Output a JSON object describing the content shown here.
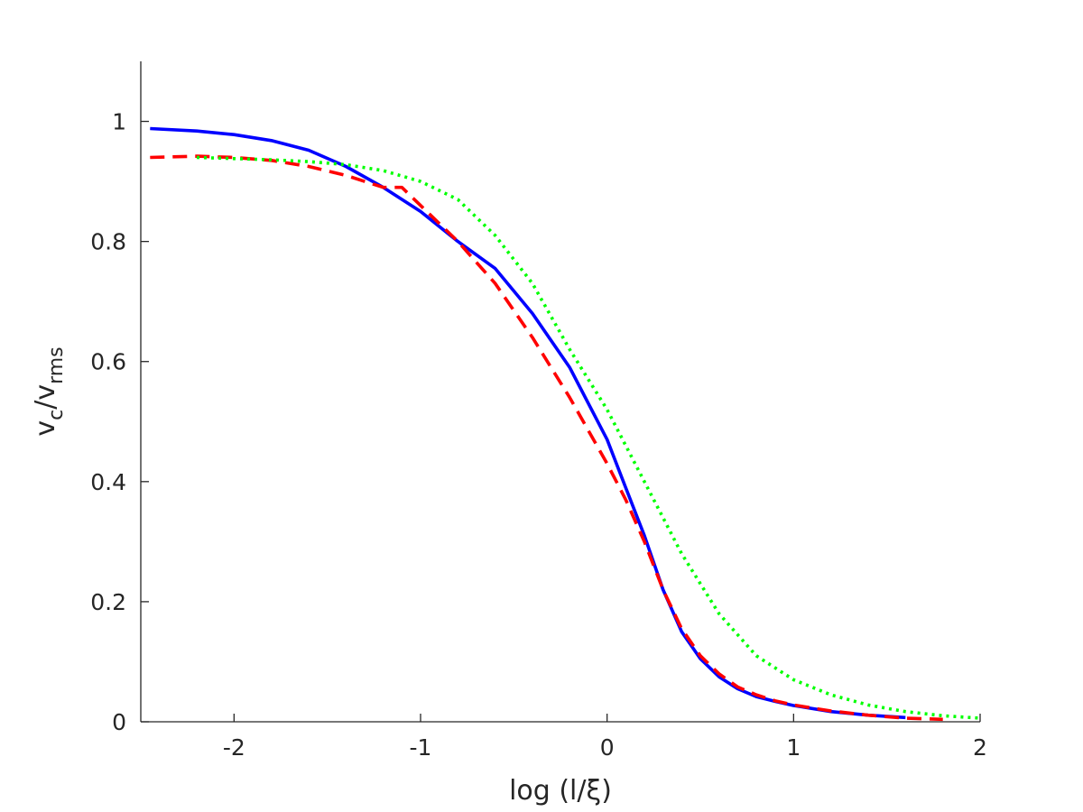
{
  "chart_data": {
    "type": "line",
    "xlabel": "log (l/ξ)",
    "ylabel": {
      "main": "v",
      "sub1": "c",
      "slash": "/v",
      "sub2": "rms"
    },
    "xlim": [
      -2.5,
      2
    ],
    "ylim": [
      0,
      1.1
    ],
    "x_ticks": [
      -2,
      -1,
      0,
      1,
      2
    ],
    "x_tick_labels": [
      "-2",
      "-1",
      "0",
      "1",
      "2"
    ],
    "y_ticks": [
      0,
      0.2,
      0.4,
      0.6,
      0.8,
      1
    ],
    "y_tick_labels": [
      "0",
      "0.2",
      "0.4",
      "0.6",
      "0.8",
      "1"
    ],
    "grid": false,
    "legend": "none",
    "series": [
      {
        "color": "#0000ff",
        "style": "solid",
        "x": [
          -2.45,
          -2.2,
          -2.0,
          -1.8,
          -1.6,
          -1.4,
          -1.2,
          -1.0,
          -0.8,
          -0.6,
          -0.4,
          -0.2,
          0.0,
          0.1,
          0.2,
          0.3,
          0.4,
          0.5,
          0.6,
          0.7,
          0.8,
          0.9,
          1.0,
          1.2,
          1.4,
          1.6
        ],
        "y": [
          0.988,
          0.984,
          0.978,
          0.968,
          0.952,
          0.925,
          0.89,
          0.85,
          0.8,
          0.755,
          0.68,
          0.59,
          0.47,
          0.39,
          0.31,
          0.22,
          0.15,
          0.105,
          0.075,
          0.055,
          0.042,
          0.034,
          0.027,
          0.017,
          0.011,
          0.007
        ]
      },
      {
        "color": "#ff0000",
        "style": "dashed",
        "x": [
          -2.45,
          -2.2,
          -2.0,
          -1.8,
          -1.6,
          -1.4,
          -1.2,
          -1.1,
          -1.0,
          -0.8,
          -0.6,
          -0.4,
          -0.2,
          0.0,
          0.1,
          0.2,
          0.3,
          0.4,
          0.5,
          0.6,
          0.7,
          0.8,
          0.9,
          1.0,
          1.2,
          1.4,
          1.6,
          1.8
        ],
        "y": [
          0.94,
          0.942,
          0.94,
          0.935,
          0.925,
          0.91,
          0.89,
          0.89,
          0.86,
          0.8,
          0.73,
          0.64,
          0.54,
          0.43,
          0.37,
          0.3,
          0.22,
          0.155,
          0.11,
          0.08,
          0.058,
          0.045,
          0.035,
          0.028,
          0.018,
          0.011,
          0.006,
          0.004
        ]
      },
      {
        "color": "#00ff00",
        "style": "dotted",
        "x": [
          -2.2,
          -2.0,
          -1.8,
          -1.6,
          -1.4,
          -1.2,
          -1.0,
          -0.8,
          -0.6,
          -0.4,
          -0.2,
          0.0,
          0.2,
          0.4,
          0.6,
          0.8,
          1.0,
          1.2,
          1.4,
          1.6,
          1.8,
          2.0
        ],
        "y": [
          0.94,
          0.938,
          0.936,
          0.933,
          0.928,
          0.918,
          0.9,
          0.87,
          0.81,
          0.73,
          0.62,
          0.52,
          0.4,
          0.28,
          0.18,
          0.11,
          0.07,
          0.045,
          0.028,
          0.017,
          0.01,
          0.006
        ]
      }
    ]
  }
}
